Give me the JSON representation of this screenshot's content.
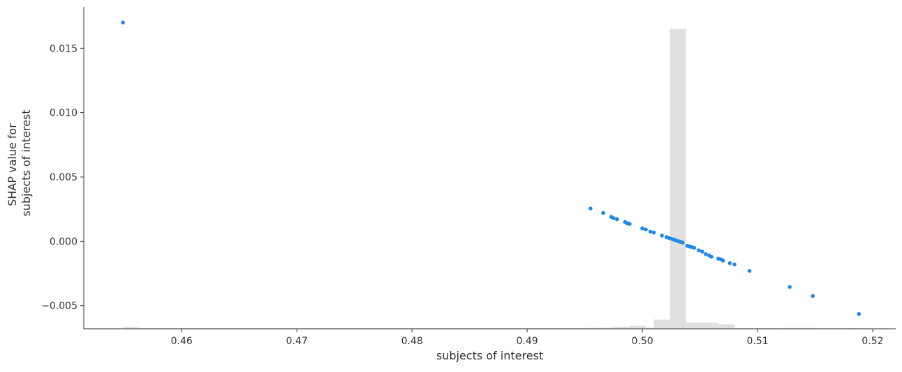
{
  "chart_data": {
    "type": "scatter",
    "title": "",
    "xlabel": "subjects of interest",
    "ylabel_lines": [
      "SHAP value for",
      "subjects of interest"
    ],
    "xlim": [
      0.4515,
      0.522
    ],
    "ylim": [
      -0.0068,
      0.0181
    ],
    "xticks": [
      0.46,
      0.47,
      0.48,
      0.49,
      0.5,
      0.51,
      0.52
    ],
    "xtick_labels": [
      "0.46",
      "0.47",
      "0.48",
      "0.49",
      "0.50",
      "0.51",
      "0.52"
    ],
    "yticks": [
      -0.005,
      0.0,
      0.005,
      0.01,
      0.015
    ],
    "ytick_labels": [
      "−0.005",
      "0.000",
      "0.005",
      "0.010",
      "0.015"
    ],
    "grid": false,
    "legend": "none",
    "colors": {
      "points": "#1e88e5",
      "histogram": "#e0e0e0",
      "axis": "#333333"
    },
    "histogram": {
      "bin_edges": [
        0.4549,
        0.4563,
        0.4947,
        0.4961,
        0.4975,
        0.4989,
        0.5003,
        0.501,
        0.5024,
        0.5038,
        0.5066,
        0.508,
        0.5108,
        0.5122,
        0.515,
        0.5164,
        0.5178,
        0.5192
      ],
      "heights": [
        0.006,
        0.002,
        0.003,
        0.004,
        0.007,
        0.01,
        0.004,
        0.031,
        1.0,
        0.021,
        0.015,
        0.002,
        0.002,
        0.003,
        0.001,
        0.001,
        0.002
      ],
      "max_y": 0.0165
    },
    "points": [
      {
        "x": 0.4549,
        "y": 0.017
      },
      {
        "x": 0.4955,
        "y": 0.00255
      },
      {
        "x": 0.4966,
        "y": 0.0022
      },
      {
        "x": 0.4973,
        "y": 0.0019
      },
      {
        "x": 0.4975,
        "y": 0.0018
      },
      {
        "x": 0.4978,
        "y": 0.00172
      },
      {
        "x": 0.4985,
        "y": 0.0015
      },
      {
        "x": 0.4987,
        "y": 0.0014
      },
      {
        "x": 0.4989,
        "y": 0.00135
      },
      {
        "x": 0.5,
        "y": 0.001
      },
      {
        "x": 0.5003,
        "y": 0.00092
      },
      {
        "x": 0.5007,
        "y": 0.00075
      },
      {
        "x": 0.501,
        "y": 0.00068
      },
      {
        "x": 0.5017,
        "y": 0.00045
      },
      {
        "x": 0.5021,
        "y": 0.00032
      },
      {
        "x": 0.5023,
        "y": 0.00026
      },
      {
        "x": 0.5025,
        "y": 0.0002
      },
      {
        "x": 0.5027,
        "y": 0.00014
      },
      {
        "x": 0.5029,
        "y": 8e-05
      },
      {
        "x": 0.5031,
        "y": 2e-05
      },
      {
        "x": 0.5033,
        "y": -4e-05
      },
      {
        "x": 0.5035,
        "y": -0.0001
      },
      {
        "x": 0.5039,
        "y": -0.00035
      },
      {
        "x": 0.5041,
        "y": -0.0004
      },
      {
        "x": 0.5043,
        "y": -0.00045
      },
      {
        "x": 0.5045,
        "y": -0.0005
      },
      {
        "x": 0.5049,
        "y": -0.0007
      },
      {
        "x": 0.5052,
        "y": -0.0008
      },
      {
        "x": 0.5055,
        "y": -0.001
      },
      {
        "x": 0.5058,
        "y": -0.0011
      },
      {
        "x": 0.506,
        "y": -0.0012
      },
      {
        "x": 0.5066,
        "y": -0.00135
      },
      {
        "x": 0.5068,
        "y": -0.0014
      },
      {
        "x": 0.507,
        "y": -0.0015
      },
      {
        "x": 0.5076,
        "y": -0.0017
      },
      {
        "x": 0.508,
        "y": -0.0018
      },
      {
        "x": 0.5093,
        "y": -0.0023
      },
      {
        "x": 0.5128,
        "y": -0.00355
      },
      {
        "x": 0.5148,
        "y": -0.00425
      },
      {
        "x": 0.5188,
        "y": -0.00565
      }
    ]
  }
}
